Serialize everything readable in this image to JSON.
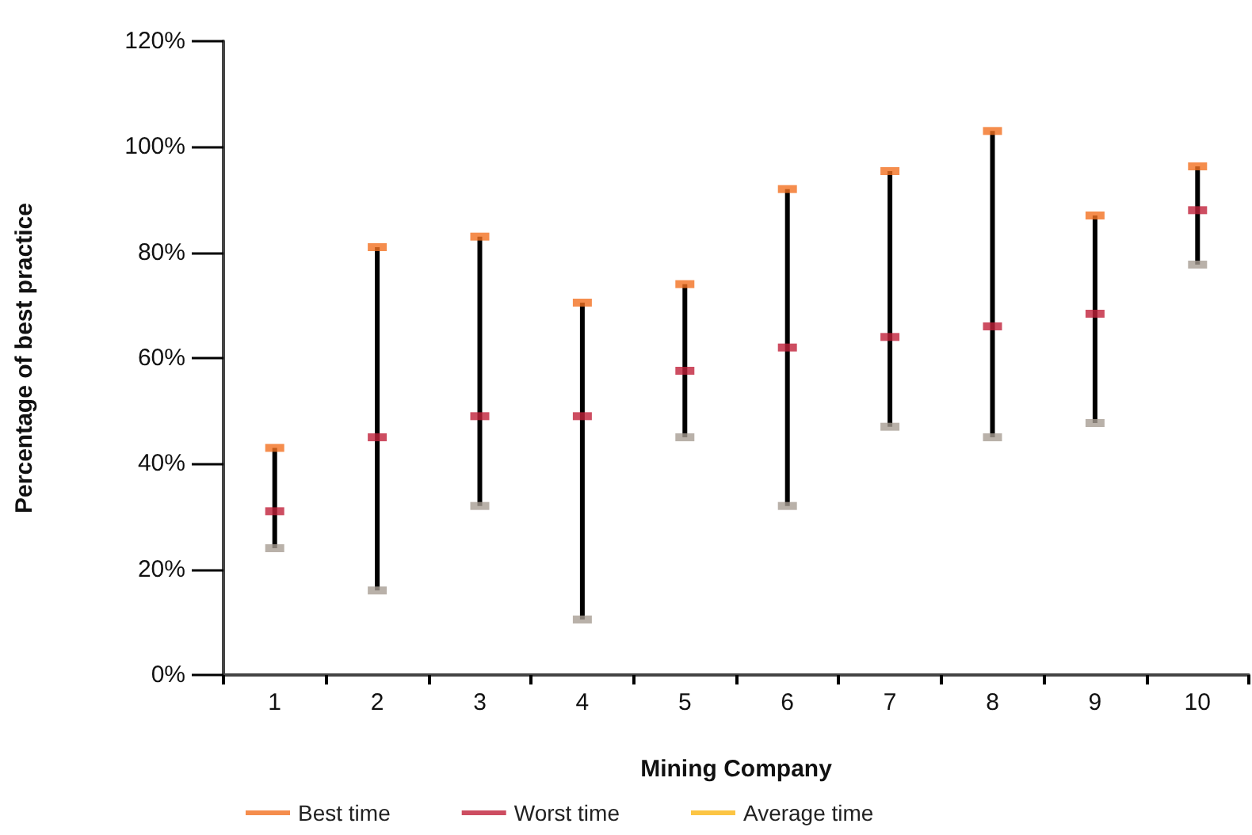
{
  "chart_data": {
    "type": "scatter",
    "xlabel": "Mining Company",
    "ylabel": "Percentage of best practice",
    "categories": [
      "1",
      "2",
      "3",
      "4",
      "5",
      "6",
      "7",
      "8",
      "9",
      "10"
    ],
    "ylim": [
      0,
      120
    ],
    "yticks": [
      {
        "value": 0,
        "label": "0%"
      },
      {
        "value": 20,
        "label": "20%"
      },
      {
        "value": 40,
        "label": "40%"
      },
      {
        "value": 60,
        "label": "60%"
      },
      {
        "value": 80,
        "label": "80%"
      },
      {
        "value": 100,
        "label": "100%"
      },
      {
        "value": 120,
        "label": "120%"
      }
    ],
    "grid": false,
    "legend": "bottom",
    "series": [
      {
        "type": "bar",
        "color": "#000000",
        "base": [
          24,
          16,
          32,
          10.5,
          45,
          32,
          47,
          45,
          47.7,
          77.7
        ],
        "values": [
          19,
          65,
          51,
          60,
          29,
          60,
          48.4,
          58,
          39.3,
          18.6
        ]
      },
      {
        "name": "Best time",
        "color": "#f37021",
        "values": [
          43,
          81,
          83,
          70.5,
          74,
          92,
          95.4,
          103,
          87,
          96.3
        ]
      },
      {
        "name": "Worst time",
        "color": "#c0213a",
        "values": [
          31,
          45,
          49,
          49,
          57.6,
          62,
          64,
          66,
          68.4,
          88
        ]
      },
      {
        "color": "#a89d94",
        "values": [
          24,
          16,
          32,
          10.5,
          45,
          32,
          47,
          45,
          47.7,
          77.7
        ]
      },
      {
        "name": "Average time",
        "color": "#fbb615",
        "values": [
          null,
          null,
          null,
          null,
          null,
          null,
          null,
          null,
          null,
          null
        ]
      }
    ]
  }
}
